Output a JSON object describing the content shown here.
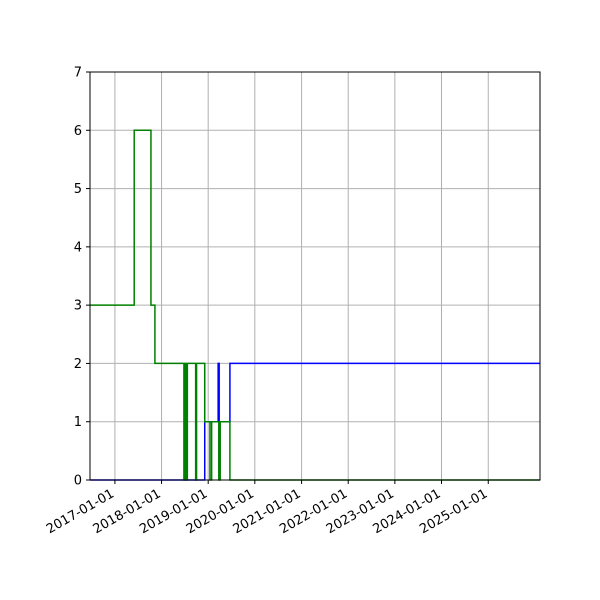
{
  "chart_data": {
    "type": "line",
    "title": "",
    "xlabel": "",
    "ylabel": "",
    "x_axis": {
      "type": "date",
      "range": [
        "2016-06-20",
        "2026-02-10"
      ],
      "ticks": [
        "2017-01-01",
        "2018-01-01",
        "2019-01-01",
        "2020-01-01",
        "2021-01-01",
        "2022-01-01",
        "2023-01-01",
        "2024-01-01",
        "2025-01-01"
      ]
    },
    "y_axis": {
      "range": [
        0,
        7
      ],
      "ticks": [
        "0",
        "1",
        "2",
        "3",
        "4",
        "5",
        "6",
        "7"
      ]
    },
    "grid": true,
    "legend": "none",
    "series": [
      {
        "color": "#0000ff",
        "step": "post",
        "points": [
          [
            "2016-06-20",
            0
          ],
          [
            "2018-12-05",
            1
          ],
          [
            "2019-03-20",
            2
          ],
          [
            "2019-03-28",
            1
          ],
          [
            "2019-06-20",
            2
          ],
          [
            "2026-02-10",
            2
          ]
        ]
      },
      {
        "color": "#008000",
        "step": "post",
        "points": [
          [
            "2016-06-20",
            3
          ],
          [
            "2017-06-01",
            6
          ],
          [
            "2017-10-10",
            3
          ],
          [
            "2017-11-10",
            2
          ],
          [
            "2018-06-25",
            0
          ],
          [
            "2018-06-28",
            2
          ],
          [
            "2018-07-01",
            0
          ],
          [
            "2018-07-05",
            2
          ],
          [
            "2018-07-10",
            0
          ],
          [
            "2018-07-14",
            2
          ],
          [
            "2018-07-18",
            0
          ],
          [
            "2018-07-22",
            2
          ],
          [
            "2018-09-25",
            0
          ],
          [
            "2018-10-02",
            2
          ],
          [
            "2018-12-05",
            1
          ],
          [
            "2019-01-15",
            0
          ],
          [
            "2019-01-28",
            1
          ],
          [
            "2019-03-25",
            0
          ],
          [
            "2019-04-05",
            1
          ],
          [
            "2019-06-20",
            0
          ],
          [
            "2026-02-10",
            0
          ]
        ]
      }
    ]
  }
}
